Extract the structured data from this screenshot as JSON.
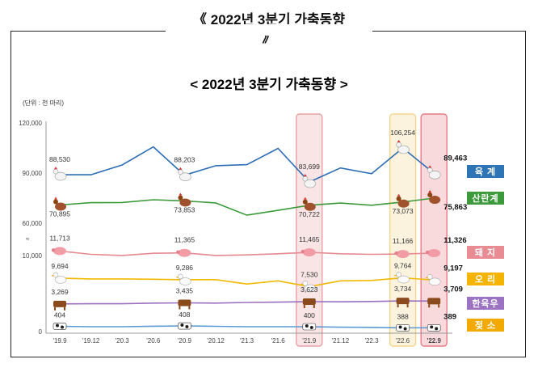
{
  "page": {
    "outer_title_line1": "《 2022년 3분기 가축동향",
    "outer_title_line2": "》"
  },
  "chart_data": {
    "type": "line",
    "title": "< 2022년 3분기 가축동향 >",
    "unit_label": "(단위 : 천 마리)",
    "categories": [
      "'19.9",
      "'19.12",
      "'20.3",
      "'20.6",
      "'20.9",
      "'20.12",
      "'21.3",
      "'21.6",
      "'21.9",
      "'21.12",
      "'22.3",
      "'22.6",
      "'22.9"
    ],
    "y_ticks": [
      "120,000",
      "90,000",
      "60,000",
      "10,000",
      "0"
    ],
    "axis_break": true,
    "grid": false,
    "highlighted_periods": [
      "'21.9",
      "'22.6",
      "'22.9"
    ],
    "highlight_colors": {
      "'21.9": "#e8a0a6",
      "'22.6": "#f3d58c",
      "'22.9": "#e57a84"
    },
    "series": [
      {
        "name": "육 계",
        "color": "#2e6db4",
        "legend_bg": "#2e75b6",
        "icon": "chicken-icon",
        "values": [
          88530,
          88500,
          95000,
          107000,
          88203,
          94500,
          95200,
          106000,
          83699,
          93000,
          89200,
          106254,
          89463
        ]
      },
      {
        "name": "산란계",
        "color": "#3a9a3a",
        "legend_bg": "#3d9a3c",
        "icon": "hen-icon",
        "values": [
          70895,
          72600,
          72700,
          74700,
          73853,
          72400,
          63500,
          67000,
          70722,
          72300,
          70700,
          73073,
          75863
        ]
      },
      {
        "name": "돼 지",
        "color": "#e48a90",
        "legend_bg": "#e98b93",
        "icon": "pig-icon",
        "values": [
          11713,
          11100,
          10900,
          11300,
          11365,
          10900,
          11000,
          11200,
          11465,
          11200,
          11100,
          11166,
          11326
        ]
      },
      {
        "name": "오 리",
        "color": "#f2b800",
        "legend_bg": "#f4b400",
        "icon": "duck-icon",
        "values": [
          9694,
          9500,
          9500,
          9400,
          9286,
          9300,
          8200,
          9000,
          7530,
          9000,
          9100,
          9764,
          9197
        ]
      },
      {
        "name": "한육우",
        "color": "#9a6fbf",
        "legend_bg": "#9c72c2",
        "icon": "cow-icon",
        "values": [
          3269,
          3300,
          3300,
          3400,
          3435,
          3400,
          3500,
          3550,
          3623,
          3600,
          3650,
          3734,
          3709
        ]
      },
      {
        "name": "젖 소",
        "color": "#5b9bd5",
        "legend_bg": "#f2a900",
        "icon": "dairy-cow-icon",
        "values": [
          404,
          400,
          400,
          405,
          408,
          404,
          400,
          400,
          400,
          395,
          393,
          388,
          389
        ]
      }
    ],
    "data_labels": [
      {
        "series": 0,
        "items": [
          {
            "i": 0,
            "text": "88,530"
          },
          {
            "i": 4,
            "text": "88,203"
          },
          {
            "i": 8,
            "text": "83,699"
          },
          {
            "i": 11,
            "text": "106,254"
          },
          {
            "i": 12,
            "text": "89,463",
            "bold": true
          }
        ]
      },
      {
        "series": 1,
        "items": [
          {
            "i": 0,
            "text": "70,895"
          },
          {
            "i": 4,
            "text": "73,853"
          },
          {
            "i": 8,
            "text": "70,722"
          },
          {
            "i": 11,
            "text": "73,073"
          },
          {
            "i": 12,
            "text": "75,863",
            "bold": true
          }
        ]
      },
      {
        "series": 2,
        "items": [
          {
            "i": 0,
            "text": "11,713"
          },
          {
            "i": 4,
            "text": "11,365"
          },
          {
            "i": 8,
            "text": "11,465"
          },
          {
            "i": 11,
            "text": "11,166"
          },
          {
            "i": 12,
            "text": "11,326",
            "bold": true
          }
        ]
      },
      {
        "series": 3,
        "items": [
          {
            "i": 0,
            "text": "9,694"
          },
          {
            "i": 4,
            "text": "9,286"
          },
          {
            "i": 8,
            "text": "7,530"
          },
          {
            "i": 11,
            "text": "9,764"
          },
          {
            "i": 12,
            "text": "9,197",
            "bold": true
          }
        ]
      },
      {
        "series": 4,
        "items": [
          {
            "i": 0,
            "text": "3,269"
          },
          {
            "i": 4,
            "text": "3,435"
          },
          {
            "i": 8,
            "text": "3,623"
          },
          {
            "i": 11,
            "text": "3,734"
          },
          {
            "i": 12,
            "text": "3,709",
            "bold": true
          }
        ]
      },
      {
        "series": 5,
        "items": [
          {
            "i": 0,
            "text": "404"
          },
          {
            "i": 4,
            "text": "408"
          },
          {
            "i": 8,
            "text": "400"
          },
          {
            "i": 11,
            "text": "388"
          },
          {
            "i": 12,
            "text": "389",
            "bold": true
          }
        ]
      }
    ]
  }
}
